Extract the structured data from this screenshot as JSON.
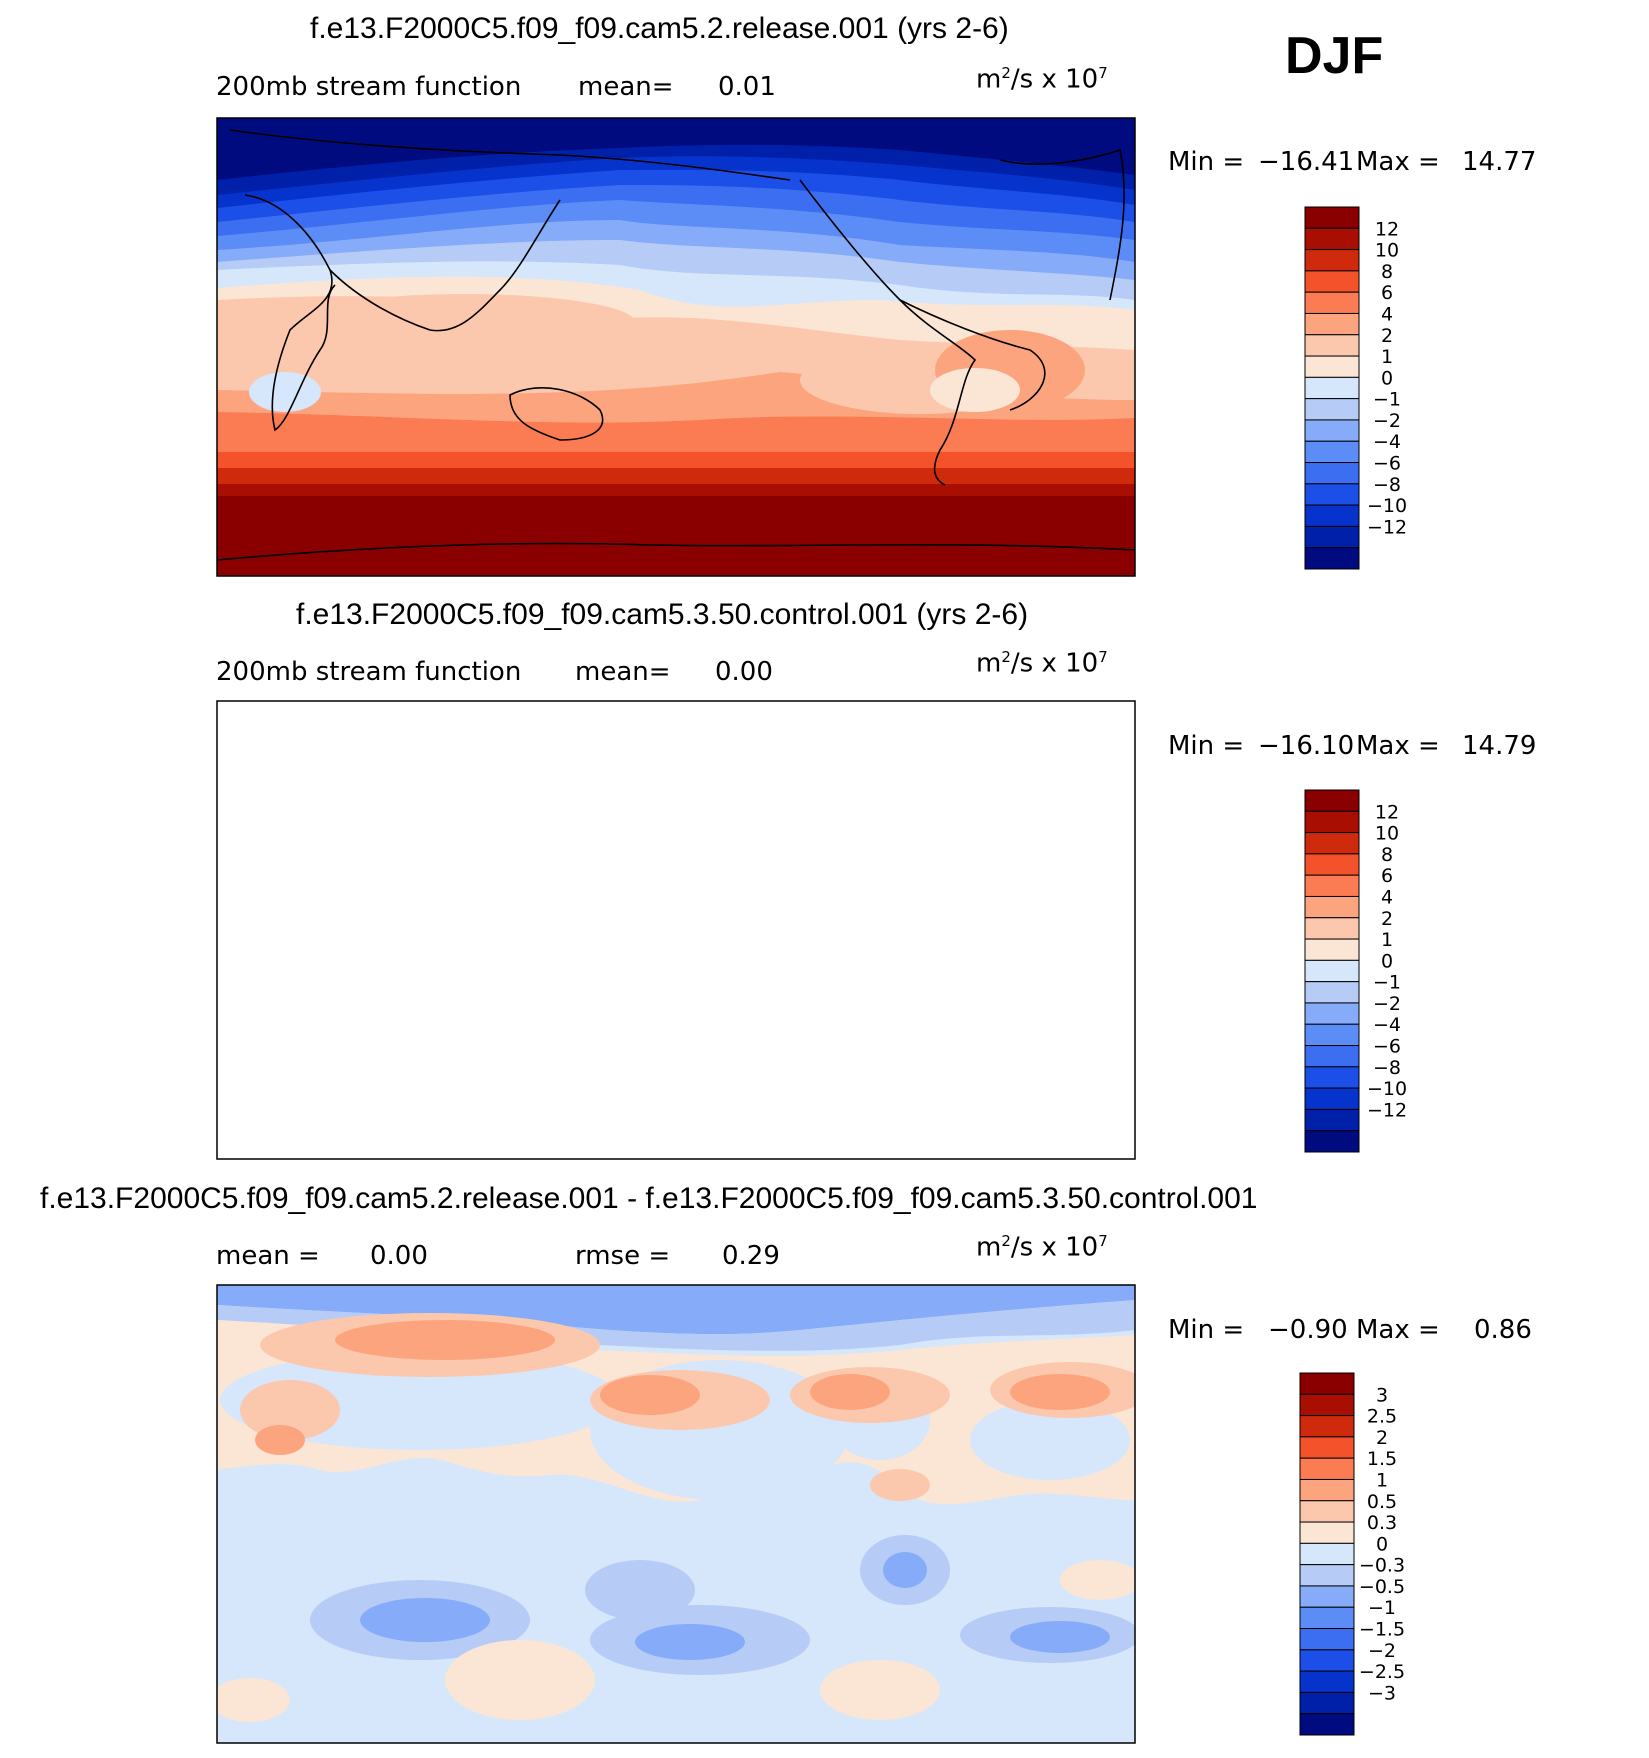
{
  "season": "DJF",
  "colors": {
    "main_scale": [
      "#000b80",
      "#0020aa",
      "#0533cc",
      "#1c4ee8",
      "#3b6ef0",
      "#5c8cf5",
      "#86abf8",
      "#b6ccf7",
      "#d6e6fb",
      "#fbe6d6",
      "#fcc8ad",
      "#fca47e",
      "#fb7b52",
      "#f4522a",
      "#d02a0c",
      "#a80f02",
      "#8a0000"
    ],
    "diff_scale": [
      "#000b80",
      "#0020aa",
      "#0533cc",
      "#1c4ee8",
      "#3b6ef0",
      "#5c8cf5",
      "#86abf8",
      "#b6ccf7",
      "#d6e6fb",
      "#fbe6d6",
      "#fcc8ad",
      "#fca47e",
      "#fb7b52",
      "#f4522a",
      "#d02a0c",
      "#a80f02",
      "#8a0000"
    ]
  },
  "panels": [
    {
      "title": "f.e13.F2000C5.f09_f09.cam5.2.release.001 (yrs 2-6)",
      "field_label": "200mb stream function",
      "stat1_label": "mean=",
      "stat1_value": "0.01",
      "stat2_label": "",
      "stat2_value": "",
      "units": "m",
      "units_exp": "2",
      "units_rest": "/s x 10",
      "units_exp2": "7",
      "min_label": "Min =",
      "min_value": "−16.41",
      "max_label": "Max =",
      "max_value": "14.77",
      "colorbar_labels": [
        "12",
        "10",
        "8",
        "6",
        "4",
        "2",
        "1",
        "0",
        "−1",
        "−2",
        "−4",
        "−6",
        "−8",
        "−10",
        "−12"
      ],
      "kind": "full"
    },
    {
      "title": "f.e13.F2000C5.f09_f09.cam5.3.50.control.001 (yrs 2-6)",
      "field_label": "200mb stream function",
      "stat1_label": "mean=",
      "stat1_value": "0.00",
      "stat2_label": "",
      "stat2_value": "",
      "units": "m",
      "units_exp": "2",
      "units_rest": "/s x 10",
      "units_exp2": "7",
      "min_label": "Min =",
      "min_value": "−16.10",
      "max_label": "Max =",
      "max_value": "14.79",
      "colorbar_labels": [
        "12",
        "10",
        "8",
        "6",
        "4",
        "2",
        "1",
        "0",
        "−1",
        "−2",
        "−4",
        "−6",
        "−8",
        "−10",
        "−12"
      ],
      "kind": "full"
    },
    {
      "title": "f.e13.F2000C5.f09_f09.cam5.2.release.001 - f.e13.F2000C5.f09_f09.cam5.3.50.control.001",
      "field_label": "",
      "stat1_label": "mean =",
      "stat1_value": "0.00",
      "stat2_label": "rmse =",
      "stat2_value": "0.29",
      "units": "m",
      "units_exp": "2",
      "units_rest": "/s x 10",
      "units_exp2": "7",
      "min_label": "Min =",
      "min_value": "−0.90",
      "max_label": "Max =",
      "max_value": "0.86",
      "colorbar_labels": [
        "3",
        "2.5",
        "2",
        "1.5",
        "1",
        "0.5",
        "0.3",
        "0",
        "−0.3",
        "−0.5",
        "−1",
        "−1.5",
        "−2",
        "−2.5",
        "−3"
      ],
      "kind": "diff"
    }
  ]
}
